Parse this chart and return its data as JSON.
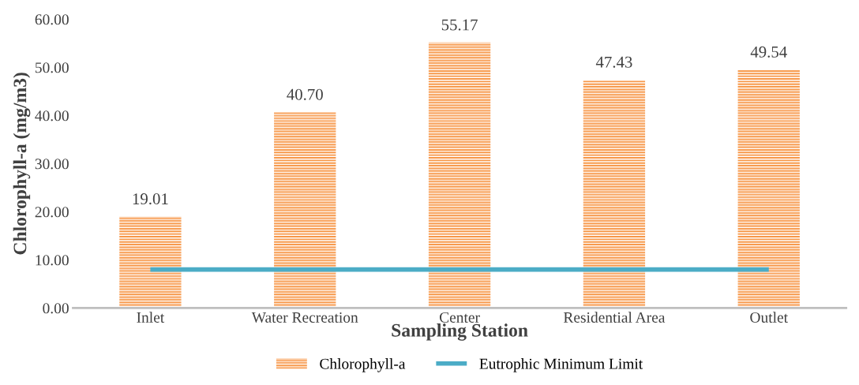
{
  "chart_data": {
    "type": "bar",
    "xlabel": "Sampling Station",
    "ylabel": "Chlorophyll-a (mg/m3)",
    "categories": [
      "Inlet",
      "Water Recreation",
      "Center",
      "Residential Area",
      "Outlet"
    ],
    "series": [
      {
        "name": "Chlorophyll-a",
        "color": "#f79646",
        "values": [
          19.01,
          40.7,
          55.17,
          47.43,
          49.54
        ],
        "value_labels": [
          "19.01",
          "40.70",
          "55.17",
          "47.43",
          "49.54"
        ]
      },
      {
        "name": "Eutrophic Minimum Limit",
        "type": "line",
        "color": "#4bacc6",
        "values": [
          8,
          8,
          8,
          8,
          8
        ]
      }
    ],
    "ylim": [
      0,
      60
    ],
    "yticks": [
      {
        "value": 0,
        "label": "0.00"
      },
      {
        "value": 10,
        "label": "10.00"
      },
      {
        "value": 20,
        "label": "20.00"
      },
      {
        "value": 30,
        "label": "30.00"
      },
      {
        "value": 40,
        "label": "40.00"
      },
      {
        "value": 50,
        "label": "50.00"
      },
      {
        "value": 60,
        "label": "60.00"
      }
    ],
    "grid": false,
    "legend": "bottom"
  }
}
